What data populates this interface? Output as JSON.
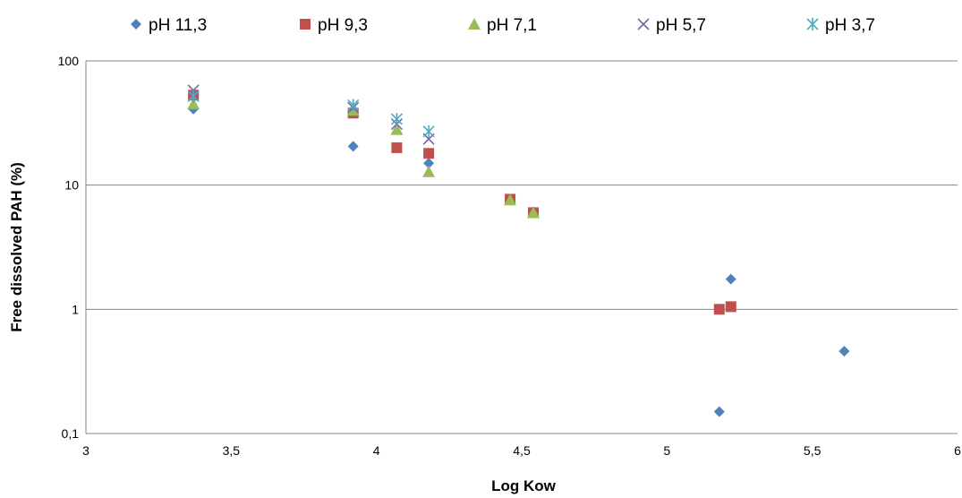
{
  "chart_data": {
    "type": "scatter",
    "title": "",
    "xlabel": "Log Kow",
    "ylabel": "Free dissolved PAH (%)",
    "xlim": [
      3,
      6
    ],
    "ylim": [
      0.1,
      100
    ],
    "yscale": "log",
    "grid": "horizontal major gridlines",
    "legend_position": "top",
    "x_ticks": [
      "3",
      "3,5",
      "4",
      "4,5",
      "5",
      "5,5",
      "6"
    ],
    "y_ticks": [
      "0,1",
      "1",
      "10",
      "100"
    ],
    "series": [
      {
        "name": "pH 11,3",
        "marker": "diamond",
        "color": "#4F81BD",
        "points": [
          [
            3.37,
            41
          ],
          [
            3.92,
            20.5
          ],
          [
            4.18,
            15
          ],
          [
            4.46,
            7.6
          ],
          [
            4.54,
            6.1
          ],
          [
            5.18,
            0.15
          ],
          [
            5.22,
            1.75
          ],
          [
            5.61,
            0.46
          ]
        ]
      },
      {
        "name": "pH 9,3",
        "marker": "square",
        "color": "#C0504D",
        "points": [
          [
            3.37,
            53
          ],
          [
            3.92,
            38
          ],
          [
            4.07,
            20
          ],
          [
            4.18,
            18
          ],
          [
            4.46,
            7.7
          ],
          [
            4.54,
            6.0
          ],
          [
            5.18,
            1.0
          ],
          [
            5.22,
            1.05
          ]
        ]
      },
      {
        "name": "pH 7,1",
        "marker": "triangle",
        "color": "#9BBB59",
        "points": [
          [
            3.37,
            45
          ],
          [
            3.92,
            40
          ],
          [
            4.07,
            28
          ],
          [
            4.18,
            12.8
          ],
          [
            4.46,
            7.6
          ],
          [
            4.54,
            6.0
          ]
        ]
      },
      {
        "name": "pH 5,7",
        "marker": "x",
        "color": "#8064A2",
        "points": [
          [
            3.37,
            58
          ],
          [
            3.92,
            42
          ],
          [
            4.07,
            31
          ],
          [
            4.18,
            23.5
          ]
        ]
      },
      {
        "name": "pH 3,7",
        "marker": "star",
        "color": "#4BACC6",
        "points": [
          [
            3.37,
            52
          ],
          [
            3.92,
            44
          ],
          [
            4.07,
            34
          ],
          [
            4.18,
            27
          ]
        ]
      }
    ]
  }
}
